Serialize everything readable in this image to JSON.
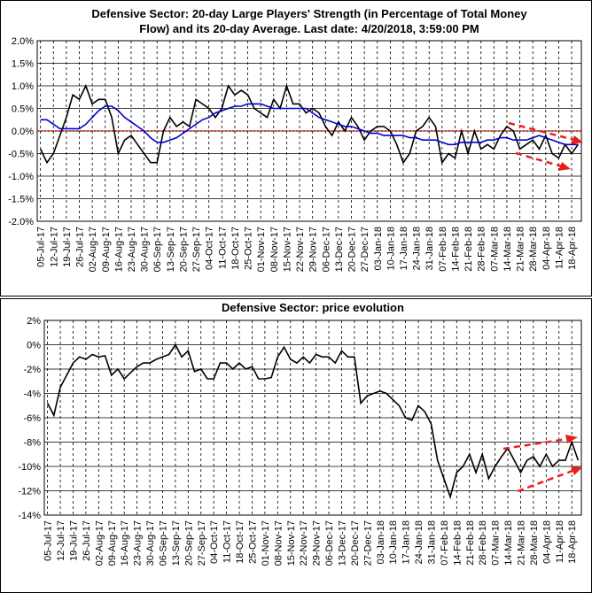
{
  "chart_data": [
    {
      "type": "line",
      "title": [
        "Defensive Sector: 20-day Large Players' Strength (in Percentage of Total Money",
        "Flow) and its 20-day Average. Last date: 4/20/2018, 3:59:00 PM"
      ],
      "categories": [
        "05-Jul-17",
        null,
        "12-Jul-17",
        null,
        "19-Jul-17",
        null,
        "26-Jul-17",
        null,
        "02-Aug-17",
        null,
        "09-Aug-17",
        null,
        "16-Aug-17",
        null,
        "23-Aug-17",
        null,
        "30-Aug-17",
        null,
        "06-Sep-17",
        null,
        "13-Sep-17",
        null,
        "20-Sep-17",
        null,
        "27-Sep-17",
        null,
        "04-Oct-17",
        null,
        "11-Oct-17",
        null,
        "18-Oct-17",
        null,
        "25-Oct-17",
        null,
        "01-Nov-17",
        null,
        "08-Nov-17",
        null,
        "15-Nov-17",
        null,
        "22-Nov-17",
        null,
        "29-Nov-17",
        null,
        "06-Dec-17",
        null,
        "13-Dec-17",
        null,
        "20-Dec-17",
        null,
        "27-Dec-17",
        null,
        "03-Jan-18",
        null,
        "10-Jan-18",
        null,
        "17-Jan-18",
        null,
        "24-Jan-18",
        null,
        "31-Jan-18",
        null,
        "07-Feb-18",
        null,
        "14-Feb-18",
        null,
        "21-Feb-18",
        null,
        "28-Feb-18",
        null,
        "07-Mar-18",
        null,
        "14-Mar-18",
        null,
        "21-Mar-18",
        null,
        "28-Mar-18",
        null,
        "04-Apr-18",
        null,
        "11-Apr-18",
        null,
        "18-Apr-18",
        null
      ],
      "series": [
        {
          "color": "#000000",
          "values": [
            -0.4,
            -0.7,
            -0.5,
            -0.1,
            0.3,
            0.8,
            0.7,
            1.0,
            0.6,
            0.7,
            0.7,
            0.3,
            -0.5,
            -0.2,
            -0.1,
            -0.3,
            -0.5,
            -0.7,
            -0.7,
            0.0,
            0.3,
            0.1,
            0.2,
            0.1,
            0.7,
            0.6,
            0.5,
            0.3,
            0.5,
            1.0,
            0.8,
            0.9,
            0.8,
            0.5,
            0.4,
            0.3,
            0.7,
            0.5,
            1.0,
            0.6,
            0.6,
            0.4,
            0.5,
            0.4,
            0.1,
            -0.1,
            0.2,
            0.0,
            0.3,
            0.1,
            -0.2,
            0.0,
            0.1,
            0.1,
            0.0,
            -0.3,
            -0.7,
            -0.5,
            0.0,
            0.1,
            0.3,
            0.1,
            -0.7,
            -0.5,
            -0.6,
            0.0,
            -0.5,
            0.0,
            -0.4,
            -0.3,
            -0.4,
            -0.1,
            0.1,
            0.0,
            -0.4,
            -0.3,
            -0.2,
            -0.4,
            -0.1,
            -0.5,
            -0.6,
            -0.3,
            -0.5,
            -0.3
          ]
        },
        {
          "color": "#0000cc",
          "values": [
            0.25,
            0.25,
            0.15,
            0.05,
            0.05,
            0.05,
            0.05,
            0.15,
            0.3,
            0.45,
            0.55,
            0.55,
            0.45,
            0.3,
            0.2,
            0.1,
            0.0,
            -0.15,
            -0.25,
            -0.25,
            -0.2,
            -0.15,
            -0.05,
            0.05,
            0.15,
            0.25,
            0.3,
            0.4,
            0.45,
            0.5,
            0.55,
            0.55,
            0.6,
            0.6,
            0.6,
            0.55,
            0.5,
            0.5,
            0.5,
            0.5,
            0.5,
            0.5,
            0.4,
            0.3,
            0.25,
            0.2,
            0.15,
            0.1,
            0.1,
            0.05,
            0.0,
            -0.05,
            -0.05,
            -0.1,
            -0.1,
            -0.1,
            -0.1,
            -0.15,
            -0.15,
            -0.2,
            -0.2,
            -0.2,
            -0.25,
            -0.3,
            -0.3,
            -0.25,
            -0.25,
            -0.25,
            -0.25,
            -0.2,
            -0.2,
            -0.15,
            -0.15,
            -0.2,
            -0.2,
            -0.2,
            -0.15,
            -0.1,
            -0.15,
            -0.2,
            -0.25,
            -0.3,
            -0.3,
            -0.3
          ]
        }
      ],
      "ylim": [
        -2,
        2
      ],
      "yticks": [
        {
          "value": -2,
          "label": "-2.0%"
        },
        {
          "value": -1.5,
          "label": "-1.5%"
        },
        {
          "value": -1,
          "label": "-1.0%"
        },
        {
          "value": -0.5,
          "label": "-0.5%"
        },
        {
          "value": 0,
          "label": "0.0%"
        },
        {
          "value": 0.5,
          "label": "0.5%"
        },
        {
          "value": 1,
          "label": "1.0%"
        },
        {
          "value": 1.5,
          "label": "1.5%"
        },
        {
          "value": 2,
          "label": "2.0%"
        }
      ],
      "grid": true
    },
    {
      "type": "line",
      "title": [
        "Defensive Sector: price evolution"
      ],
      "categories": [
        "05-Jul-17",
        null,
        "12-Jul-17",
        null,
        "19-Jul-17",
        null,
        "26-Jul-17",
        null,
        "02-Aug-17",
        null,
        "09-Aug-17",
        null,
        "16-Aug-17",
        null,
        "23-Aug-17",
        null,
        "30-Aug-17",
        null,
        "06-Sep-17",
        null,
        "13-Sep-17",
        null,
        "20-Sep-17",
        null,
        "27-Sep-17",
        null,
        "04-Oct-17",
        null,
        "11-Oct-17",
        null,
        "18-Oct-17",
        null,
        "25-Oct-17",
        null,
        "01-Nov-17",
        null,
        "08-Nov-17",
        null,
        "15-Nov-17",
        null,
        "22-Nov-17",
        null,
        "29-Nov-17",
        null,
        "06-Dec-17",
        null,
        "13-Dec-17",
        null,
        "20-Dec-17",
        null,
        "27-Dec-17",
        null,
        "03-Jan-18",
        null,
        "10-Jan-18",
        null,
        "17-Jan-18",
        null,
        "24-Jan-18",
        null,
        "31-Jan-18",
        null,
        "07-Feb-18",
        null,
        "14-Feb-18",
        null,
        "21-Feb-18",
        null,
        "28-Feb-18",
        null,
        "07-Mar-18",
        null,
        "14-Mar-18",
        null,
        "21-Mar-18",
        null,
        "28-Mar-18",
        null,
        "04-Apr-18",
        null,
        "11-Apr-18",
        null,
        "18-Apr-18",
        null
      ],
      "series": [
        {
          "color": "#000000",
          "values": [
            -4.8,
            -5.8,
            -3.5,
            -2.5,
            -1.5,
            -1.0,
            -1.2,
            -0.8,
            -1.0,
            -0.9,
            -2.5,
            -2.0,
            -2.8,
            -2.3,
            -1.8,
            -1.5,
            -1.5,
            -1.2,
            -1.0,
            -0.8,
            0.0,
            -1.0,
            -0.5,
            -2.2,
            -2.0,
            -2.8,
            -2.8,
            -1.5,
            -1.5,
            -2.0,
            -1.5,
            -2.0,
            -1.8,
            -2.8,
            -2.8,
            -2.7,
            -1.0,
            -0.2,
            -1.2,
            -1.5,
            -1.0,
            -1.5,
            -0.8,
            -1.0,
            -1.0,
            -1.5,
            -0.5,
            -1.0,
            -1.0,
            -4.8,
            -4.2,
            -4.0,
            -3.8,
            -4.0,
            -4.5,
            -5.0,
            -6.0,
            -6.2,
            -5.0,
            -5.5,
            -6.5,
            -9.5,
            -11.0,
            -12.5,
            -10.5,
            -10.0,
            -9.0,
            -10.5,
            -9.0,
            -11.0,
            -10.0,
            -9.2,
            -8.5,
            -9.5,
            -10.5,
            -9.5,
            -9.2,
            -10.0,
            -9.0,
            -10.0,
            -9.5,
            -9.5,
            -8.0,
            -9.5
          ]
        }
      ],
      "ylim": [
        -14,
        2
      ],
      "yticks": [
        {
          "value": -14,
          "label": "-14%"
        },
        {
          "value": -12,
          "label": "-12%"
        },
        {
          "value": -10,
          "label": "-10%"
        },
        {
          "value": -8,
          "label": "-8%"
        },
        {
          "value": -6,
          "label": "-6%"
        },
        {
          "value": -4,
          "label": "-4%"
        },
        {
          "value": -2,
          "label": "-2%"
        },
        {
          "value": 0,
          "label": "0%"
        },
        {
          "value": 2,
          "label": "2%"
        }
      ],
      "grid": true
    }
  ]
}
